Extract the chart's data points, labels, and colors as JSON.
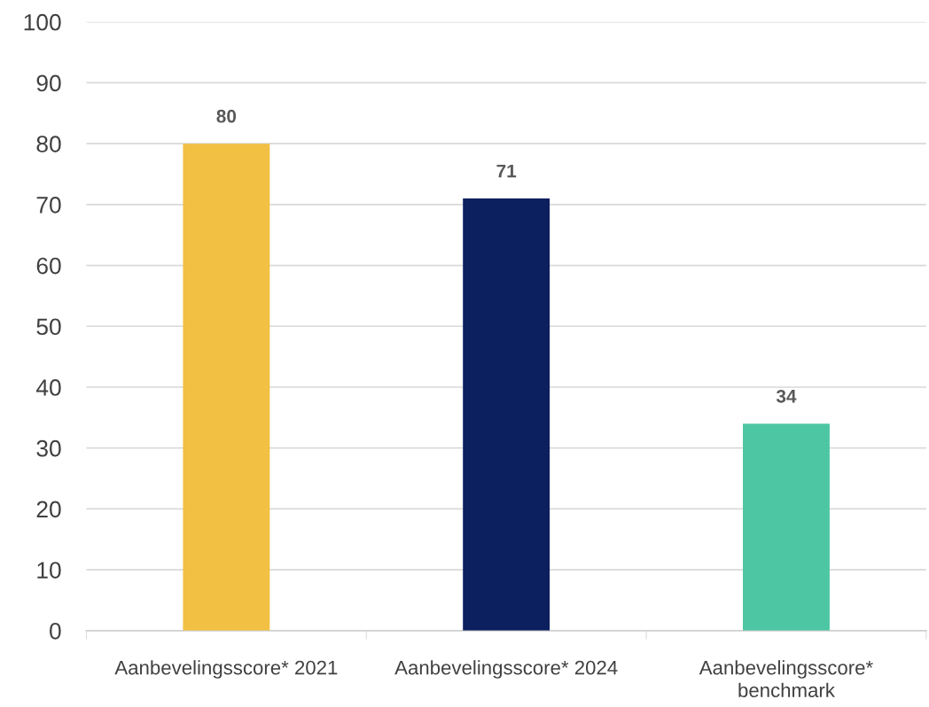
{
  "chart_data": {
    "type": "bar",
    "categories": [
      "Aanbevelingsscore* 2021",
      "Aanbevelingsscore* 2024",
      "Aanbevelingsscore*\nbenchmark"
    ],
    "values": [
      80,
      71,
      34
    ],
    "colors": [
      "#f2c043",
      "#0c1f5e",
      "#4dc6a3"
    ],
    "ylim": [
      0,
      100
    ],
    "yticks": [
      0,
      10,
      20,
      30,
      40,
      50,
      60,
      70,
      80,
      90,
      100
    ],
    "grid": "y",
    "data_labels": true,
    "legend": false
  }
}
